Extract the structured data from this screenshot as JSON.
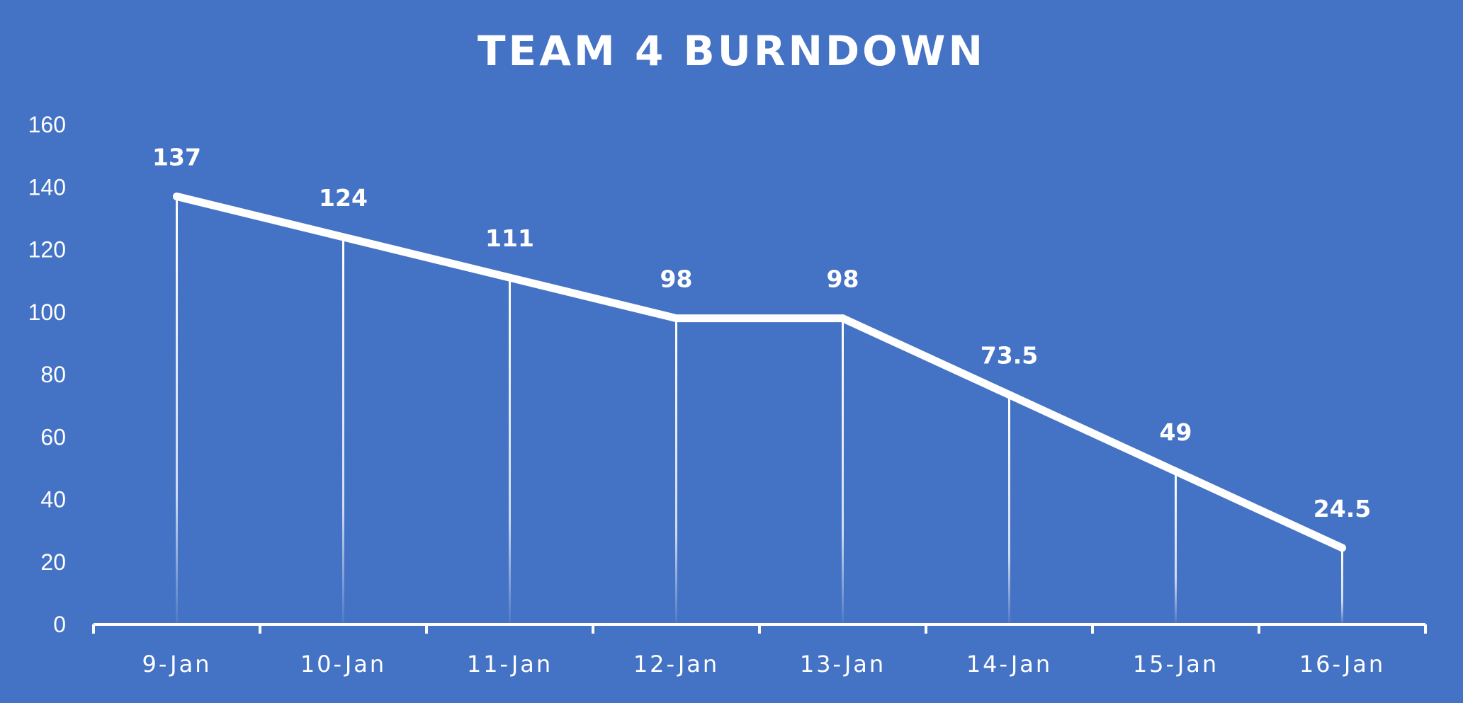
{
  "chart_data": {
    "type": "line",
    "title": "TEAM 4 BURNDOWN",
    "xlabel": "",
    "ylabel": "",
    "categories": [
      "9-Jan",
      "10-Jan",
      "11-Jan",
      "12-Jan",
      "13-Jan",
      "14-Jan",
      "15-Jan",
      "16-Jan"
    ],
    "values": [
      137,
      124,
      111,
      98,
      98,
      73.5,
      49,
      24.5
    ],
    "data_labels": [
      "137",
      "124",
      "111",
      "98",
      "98",
      "73.5",
      "49",
      "24.5"
    ],
    "ylim": [
      0,
      160
    ],
    "yticks": [
      "0",
      "20",
      "40",
      "60",
      "80",
      "100",
      "120",
      "140",
      "160"
    ],
    "grid": false,
    "drop_lines": true,
    "legend": "none",
    "colors": {
      "background": "#4472C4",
      "line": "#FFFFFF",
      "text": "#FFFFFF"
    }
  }
}
